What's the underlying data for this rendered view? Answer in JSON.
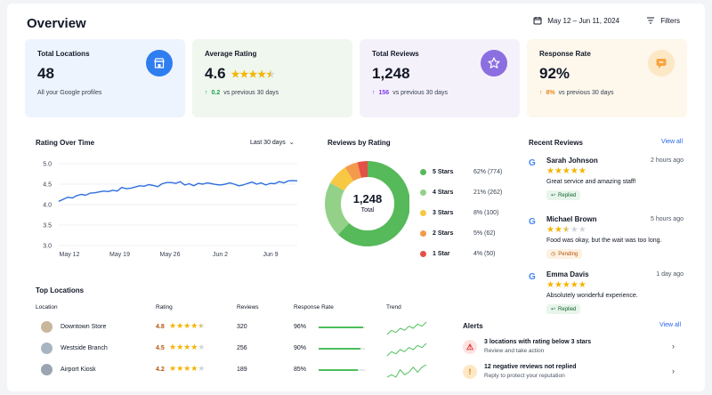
{
  "header": {
    "title": "Overview",
    "date_range": "May 12 – Jun 11, 2024",
    "filters_label": "Filters"
  },
  "kpis": [
    {
      "label": "Total Locations",
      "value": "48",
      "sub": "All your Google profiles",
      "icon": "store-icon"
    },
    {
      "label": "Average Rating",
      "value": "4.6",
      "rating": 4.6,
      "delta": "0.2",
      "delta_dir": "up",
      "sub": "vs previous 30 days"
    },
    {
      "label": "Total Reviews",
      "value": "1,248",
      "delta": "156",
      "delta_dir": "up",
      "sub": "vs previous 30 days",
      "icon": "star-icon"
    },
    {
      "label": "Response Rate",
      "value": "92%",
      "delta": "8%",
      "delta_dir": "up",
      "sub": "vs previous 30 days",
      "icon": "chat-icon"
    }
  ],
  "colors": {
    "accent_blue": "#2f7ef0",
    "accent_purple": "#8b6fe0",
    "accent_orange": "#f7a440",
    "green": "#4cbf5a",
    "five_stars": "#56b95a",
    "four_stars": "#93d189",
    "three_stars": "#f7c843",
    "two_stars": "#f39a4c",
    "one_star": "#e55047"
  },
  "rating_over_time": {
    "title": "Rating Over Time",
    "range": "Last 30 days",
    "chart_data": {
      "type": "line",
      "x_ticks": [
        "May 12",
        "May 19",
        "May 26",
        "Jun 2",
        "Jun 9"
      ],
      "y_ticks": [
        "5.0",
        "4.5",
        "4.0",
        "3.5",
        "3.0"
      ],
      "ylim": [
        3.0,
        5.0
      ],
      "values": [
        4.08,
        4.13,
        4.18,
        4.16,
        4.22,
        4.25,
        4.23,
        4.28,
        4.29,
        4.31,
        4.33,
        4.32,
        4.35,
        4.33,
        4.42,
        4.39,
        4.4,
        4.43,
        4.46,
        4.45,
        4.49,
        4.47,
        4.44,
        4.51,
        4.54,
        4.54,
        4.52,
        4.56,
        4.48,
        4.51,
        4.46,
        4.52,
        4.5,
        4.53,
        4.51,
        4.49,
        4.48,
        4.5,
        4.53,
        4.5,
        4.46,
        4.48,
        4.52,
        4.55,
        4.5,
        4.53,
        4.48,
        4.52,
        4.51,
        4.56,
        4.53,
        4.58,
        4.59,
        4.58
      ]
    }
  },
  "reviews_by_rating": {
    "title": "Reviews by Rating",
    "total": "1,248",
    "total_label": "Total",
    "chart_data": {
      "type": "pie",
      "labels": [
        "5 Stars",
        "4 Stars",
        "3 Stars",
        "2 Stars",
        "1 Star"
      ],
      "percent": [
        62,
        21,
        8,
        5,
        4
      ],
      "counts": [
        774,
        262,
        100,
        62,
        50
      ],
      "display": [
        "62% (774)",
        "21% (262)",
        "8% (100)",
        "5% (62)",
        "4% (50)"
      ]
    }
  },
  "recent_reviews": {
    "title": "Recent Reviews",
    "view_all": "View all",
    "items": [
      {
        "name": "Sarah Johnson",
        "time": "2 hours ago",
        "rating": 5,
        "text": "Great service and amazing staff!",
        "status": "Replied"
      },
      {
        "name": "Michael Brown",
        "time": "5 hours ago",
        "rating": 2.5,
        "text": "Food was okay, but the wait was too long.",
        "status": "Pending"
      },
      {
        "name": "Emma Davis",
        "time": "1 day ago",
        "rating": 5,
        "text": "Absolutely wonderful experience.",
        "status": "Replied"
      }
    ]
  },
  "top_locations": {
    "title": "Top Locations",
    "columns": [
      "Location",
      "Rating",
      "Reviews",
      "Response Rate",
      "Trend"
    ],
    "rows": [
      {
        "name": "Downtown Store",
        "rating": "4.8",
        "stars": 4.8,
        "reviews": "320",
        "response": "96%",
        "response_value": 96,
        "trend": [
          3,
          5,
          4,
          6,
          5,
          7,
          6,
          8,
          7,
          9
        ]
      },
      {
        "name": "Westside Branch",
        "rating": "4.5",
        "stars": 4.5,
        "reviews": "256",
        "response": "90%",
        "response_value": 90,
        "trend": [
          2,
          4,
          3,
          5,
          4,
          6,
          5,
          7,
          6,
          8
        ]
      },
      {
        "name": "Airport Kiosk",
        "rating": "4.2",
        "stars": 4.2,
        "reviews": "189",
        "response": "85%",
        "response_value": 85,
        "trend": [
          3,
          4,
          3,
          6,
          4,
          5,
          7,
          5,
          7,
          8
        ]
      }
    ]
  },
  "alerts": {
    "title": "Alerts",
    "view_all": "View all",
    "items": [
      {
        "title": "3 locations with rating below 3 stars",
        "sub": "Review and take action",
        "icon": "warning-icon"
      },
      {
        "title": "12 negative reviews not replied",
        "sub": "Reply to protect your reputation",
        "icon": "chat-alert-icon"
      }
    ]
  }
}
